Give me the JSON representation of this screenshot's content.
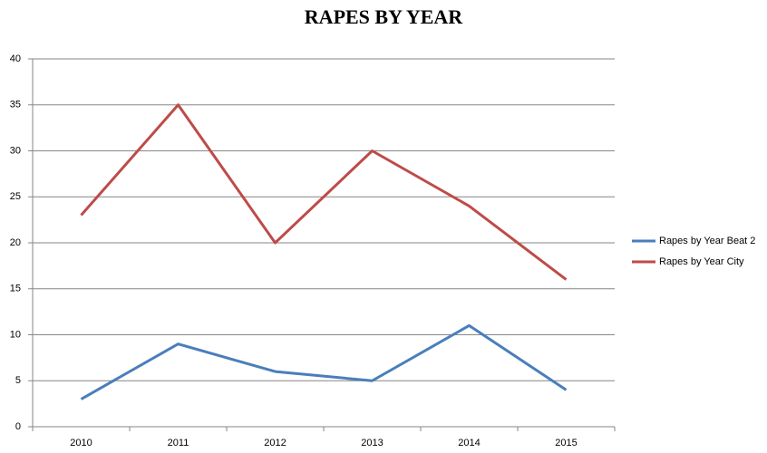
{
  "chart_data": {
    "type": "line",
    "title": "RAPES BY YEAR",
    "categories": [
      "2010",
      "2011",
      "2012",
      "2013",
      "2014",
      "2015"
    ],
    "series": [
      {
        "name": "Rapes by Year Beat 2",
        "color": "#4a7ebb",
        "values": [
          3,
          9,
          6,
          5,
          11,
          4
        ]
      },
      {
        "name": "Rapes by Year City",
        "color": "#be4b48",
        "values": [
          23,
          35,
          20,
          30,
          24,
          16
        ]
      }
    ],
    "ylim": [
      0,
      40
    ],
    "yticks": [
      0,
      5,
      10,
      15,
      20,
      25,
      30,
      35,
      40
    ],
    "grid": true,
    "legend": "right"
  }
}
